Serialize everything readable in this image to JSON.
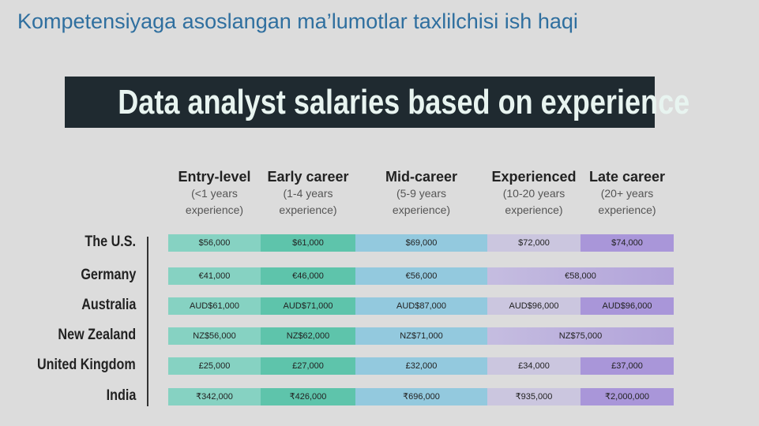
{
  "page_title": "Kompetensiyaga asoslangan ma’lumotlar taxlilchisi ish haqi",
  "banner": "Data analyst salaries based on experience",
  "table": {
    "columns": [
      {
        "title": "Entry-level",
        "detail": [
          "(<1 years",
          "experience)"
        ]
      },
      {
        "title": "Early career",
        "detail": [
          "(1-4 years",
          "experience)"
        ]
      },
      {
        "title": "Mid-career",
        "detail": [
          "(5-9 years",
          "experience)"
        ]
      },
      {
        "title": "Experienced",
        "detail": [
          "(10-20 years",
          "experience)"
        ]
      },
      {
        "title": "Late career",
        "detail": [
          "(20+ years",
          "experience)"
        ]
      }
    ],
    "rows": [
      {
        "country": "The U.S.",
        "cells": [
          "$56,000",
          "$61,000",
          "$69,000",
          "$72,000",
          "$74,000"
        ]
      },
      {
        "country": "Germany",
        "cells": [
          "€41,000",
          "€46,000",
          "€56,000",
          "€58,000"
        ]
      },
      {
        "country": "Australia",
        "cells": [
          "AUD$61,000",
          "AUD$71,000",
          "AUD$87,000",
          "AUD$96,000",
          "AUD$96,000"
        ]
      },
      {
        "country": "New Zealand",
        "cells": [
          "NZ$56,000",
          "NZ$62,000",
          "NZ$71,000",
          "NZ$75,000"
        ]
      },
      {
        "country": "United Kingdom",
        "cells": [
          "£25,000",
          "£27,000",
          "£32,000",
          "£34,000",
          "£37,000"
        ]
      },
      {
        "country": "India",
        "cells": [
          "₹342,000",
          "₹426,000",
          "₹696,000",
          "₹935,000",
          "₹2,000,000"
        ]
      }
    ]
  }
}
